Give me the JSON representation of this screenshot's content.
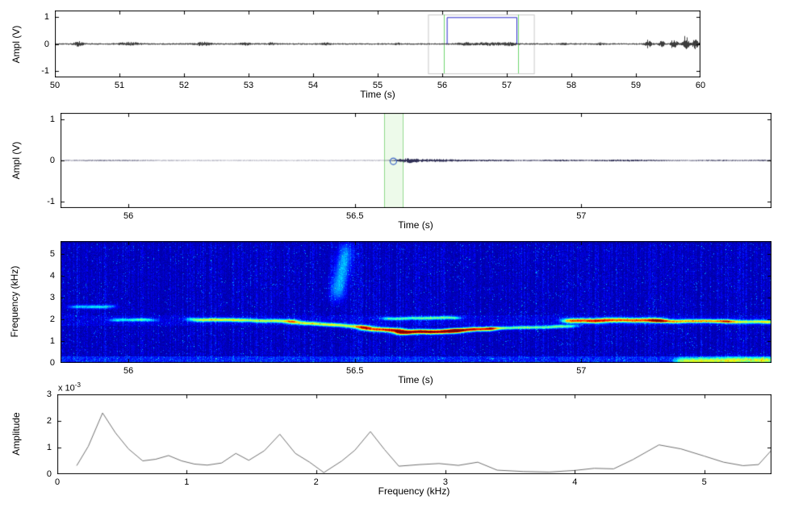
{
  "figure": {
    "background": "#ffffff",
    "axis_color": "#000000",
    "font_color": "#000000"
  },
  "chart_data": [
    {
      "id": "waveform_full",
      "type": "line",
      "title": "",
      "xlabel": "Time (s)",
      "ylabel": "Ampl (V)",
      "xlim": [
        50,
        60
      ],
      "ylim": [
        -1.25,
        1.25
      ],
      "xticks": [
        "50",
        "51",
        "52",
        "53",
        "54",
        "55",
        "56",
        "57",
        "58",
        "59",
        "60"
      ],
      "xtick_values": [
        50,
        51,
        52,
        53,
        54,
        55,
        56,
        57,
        58,
        59,
        60
      ],
      "yticks": [
        "1",
        "0",
        "-1"
      ],
      "ytick_values": [
        1,
        0,
        -1
      ],
      "grid": false,
      "signal": {
        "color": "#3c3c3c",
        "seed": 17,
        "base_amplitude": 0.03,
        "bursts": [
          {
            "t": 50.37,
            "w": 0.07,
            "a": 0.08
          },
          {
            "t": 51.15,
            "w": 0.16,
            "a": 0.05
          },
          {
            "t": 52.3,
            "w": 0.11,
            "a": 0.06
          },
          {
            "t": 52.95,
            "w": 0.07,
            "a": 0.045
          },
          {
            "t": 53.35,
            "w": 0.05,
            "a": 0.035
          },
          {
            "t": 54.2,
            "w": 0.06,
            "a": 0.03
          },
          {
            "t": 55.3,
            "w": 0.05,
            "a": 0.03
          },
          {
            "t": 56.35,
            "w": 0.14,
            "a": 0.04
          },
          {
            "t": 56.75,
            "w": 0.22,
            "a": 0.045
          },
          {
            "t": 57.05,
            "w": 0.1,
            "a": 0.045
          },
          {
            "t": 57.9,
            "w": 0.05,
            "a": 0.035
          },
          {
            "t": 58.45,
            "w": 0.05,
            "a": 0.035
          },
          {
            "t": 59.2,
            "w": 0.05,
            "a": 0.1
          },
          {
            "t": 59.4,
            "w": 0.05,
            "a": 0.09
          },
          {
            "t": 59.6,
            "w": 0.05,
            "a": 0.13
          },
          {
            "t": 59.78,
            "w": 0.05,
            "a": 0.17
          },
          {
            "t": 59.92,
            "w": 0.04,
            "a": 0.2
          }
        ],
        "spikes": {
          "t0": 59.05,
          "t1": 59.98,
          "prob": 0.1,
          "amp": 0.3
        }
      },
      "annotations": {
        "selection_box": {
          "t0": 55.78,
          "t1": 57.42,
          "y0": -1.1,
          "y1": 1.1,
          "color": "#c9c9c9"
        },
        "marker_lines": {
          "color": "#6fd66f",
          "times": [
            56.02,
            57.17
          ]
        },
        "pulse": {
          "t0": 56.07,
          "t1": 57.15,
          "level": 1,
          "color": "#2929cc"
        }
      }
    },
    {
      "id": "waveform_zoom",
      "type": "line",
      "title": "",
      "xlabel": "Time (s)",
      "ylabel": "Ampl (V)",
      "xlim": [
        55.85,
        57.42
      ],
      "ylim": [
        -1.15,
        1.15
      ],
      "xticks": [
        "56",
        "56.5",
        "57"
      ],
      "xtick_values": [
        56,
        56.5,
        57
      ],
      "yticks": [
        "1",
        "0",
        "-1"
      ],
      "ytick_values": [
        1,
        0,
        -1
      ],
      "grid": false,
      "signal": {
        "color": "#2f2f55",
        "seed": 29,
        "base_amplitude": 0.006,
        "bursts": [
          {
            "t": 55.95,
            "w": 0.1,
            "a": 0.007
          },
          {
            "t": 56.62,
            "w": 0.025,
            "a": 0.05
          },
          {
            "t": 56.68,
            "w": 0.05,
            "a": 0.028
          },
          {
            "t": 56.8,
            "w": 0.09,
            "a": 0.016
          },
          {
            "t": 56.95,
            "w": 0.05,
            "a": 0.014
          },
          {
            "t": 57.1,
            "w": 0.1,
            "a": 0.018
          },
          {
            "t": 57.3,
            "w": 0.05,
            "a": 0.011
          },
          {
            "t": 57.4,
            "w": 0.04,
            "a": 0.013
          }
        ]
      },
      "annotations": {
        "cursor_band": {
          "t0": 56.565,
          "t1": 56.605,
          "fill": "#edfaea",
          "edge": "#8fd98a"
        },
        "cursor_marker": {
          "t": 56.585,
          "y": -0.02,
          "color": "#3a63c4",
          "radius": 4
        }
      }
    },
    {
      "id": "spectrogram",
      "type": "heatmap",
      "title": "",
      "xlabel": "Time (s)",
      "ylabel": "Frequency (kHz)",
      "xlim": [
        55.85,
        57.42
      ],
      "ylim": [
        0,
        5.6
      ],
      "xticks": [
        "56",
        "56.5",
        "57"
      ],
      "xtick_values": [
        56,
        56.5,
        57
      ],
      "yticks": [
        "0",
        "1",
        "2",
        "3",
        "4",
        "5"
      ],
      "ytick_values": [
        0,
        1,
        2,
        3,
        4,
        5
      ],
      "colormap": "jet",
      "noise": {
        "seed": 2024,
        "base": 0.03,
        "gain": 0.12,
        "column_min": 0.35,
        "column_var": 1.0,
        "speckle_prob": 0.02,
        "speckle_gain": 0.15,
        "low_band_khz": 0.28,
        "low_band_gain": 0.1,
        "mid_band": {
          "f0": 1.7,
          "f1": 2.2,
          "gain": 0.03
        }
      },
      "ridge_segments": [
        {
          "t0": 55.88,
          "t1": 55.96,
          "f0": 2.6,
          "f1": 2.6,
          "v": 0.28,
          "df": 0.08
        },
        {
          "t0": 55.97,
          "t1": 56.05,
          "f0": 2.0,
          "f1": 2.0,
          "v": 0.3,
          "df": 0.07
        },
        {
          "t0": 56.14,
          "t1": 56.36,
          "f0": 2.0,
          "f1": 1.95,
          "v": 0.48,
          "df": 0.08
        },
        {
          "t0": 56.36,
          "t1": 56.52,
          "f0": 1.9,
          "f1": 1.65,
          "v": 0.5,
          "df": 0.08
        },
        {
          "t0": 56.52,
          "t1": 56.6,
          "f0": 1.6,
          "f1": 1.5,
          "v": 0.75,
          "df": 0.1
        },
        {
          "t0": 56.6,
          "t1": 56.72,
          "f0": 1.42,
          "f1": 1.48,
          "v": 0.95,
          "df": 0.1
        },
        {
          "t0": 56.72,
          "t1": 56.8,
          "f0": 1.52,
          "f1": 1.58,
          "v": 0.78,
          "df": 0.09
        },
        {
          "t0": 56.8,
          "t1": 56.98,
          "f0": 1.6,
          "f1": 1.7,
          "v": 0.42,
          "df": 0.07
        },
        {
          "t0": 56.57,
          "t1": 56.72,
          "f0": 2.05,
          "f1": 2.1,
          "v": 0.38,
          "df": 0.07
        },
        {
          "t0": 56.97,
          "t1": 57.17,
          "f0": 1.95,
          "f1": 2.0,
          "v": 0.75,
          "df": 0.1
        },
        {
          "t0": 57.17,
          "t1": 57.32,
          "f0": 1.92,
          "f1": 1.95,
          "v": 0.58,
          "df": 0.08
        },
        {
          "t0": 57.32,
          "t1": 57.42,
          "f0": 1.9,
          "f1": 1.9,
          "v": 0.5,
          "df": 0.08
        },
        {
          "t0": 57.22,
          "t1": 57.42,
          "f0": 0.1,
          "f1": 0.15,
          "v": 0.42,
          "df": 0.15
        },
        {
          "t0": 56.46,
          "t1": 56.48,
          "f0": 3.2,
          "f1": 5.2,
          "v": 0.22,
          "df": 0.4
        }
      ]
    },
    {
      "id": "spectrum",
      "type": "line",
      "title": "",
      "xlabel": "Frequency (kHz)",
      "ylabel": "Amplitude",
      "scale_label": {
        "text": "x 10",
        "exponent": "-3"
      },
      "y_unit_scale": "1e-3",
      "xlim": [
        0,
        5.52
      ],
      "ylim": [
        0,
        3
      ],
      "xticks": [
        "0",
        "1",
        "2",
        "3",
        "4",
        "5"
      ],
      "xtick_values": [
        0,
        1,
        2,
        3,
        4,
        5
      ],
      "yticks": [
        "0",
        "1",
        "2",
        "3"
      ],
      "ytick_values": [
        0,
        1,
        2,
        3
      ],
      "grid": false,
      "line_color": "#6f6f6f",
      "points": [
        [
          0.15,
          0.32
        ],
        [
          0.24,
          1.05
        ],
        [
          0.35,
          2.3
        ],
        [
          0.45,
          1.55
        ],
        [
          0.55,
          0.95
        ],
        [
          0.66,
          0.5
        ],
        [
          0.76,
          0.56
        ],
        [
          0.86,
          0.7
        ],
        [
          0.96,
          0.5
        ],
        [
          1.06,
          0.38
        ],
        [
          1.16,
          0.34
        ],
        [
          1.27,
          0.42
        ],
        [
          1.38,
          0.78
        ],
        [
          1.48,
          0.52
        ],
        [
          1.6,
          0.88
        ],
        [
          1.72,
          1.5
        ],
        [
          1.84,
          0.78
        ],
        [
          1.95,
          0.45
        ],
        [
          2.06,
          0.06
        ],
        [
          2.2,
          0.5
        ],
        [
          2.3,
          0.9
        ],
        [
          2.42,
          1.6
        ],
        [
          2.53,
          0.92
        ],
        [
          2.64,
          0.3
        ],
        [
          2.8,
          0.36
        ],
        [
          2.95,
          0.4
        ],
        [
          3.1,
          0.33
        ],
        [
          3.25,
          0.45
        ],
        [
          3.4,
          0.15
        ],
        [
          3.6,
          0.1
        ],
        [
          3.8,
          0.08
        ],
        [
          4.0,
          0.14
        ],
        [
          4.15,
          0.22
        ],
        [
          4.3,
          0.2
        ],
        [
          4.45,
          0.55
        ],
        [
          4.65,
          1.1
        ],
        [
          4.82,
          0.95
        ],
        [
          5.0,
          0.68
        ],
        [
          5.15,
          0.45
        ],
        [
          5.3,
          0.32
        ],
        [
          5.42,
          0.36
        ],
        [
          5.52,
          0.9
        ]
      ]
    }
  ]
}
